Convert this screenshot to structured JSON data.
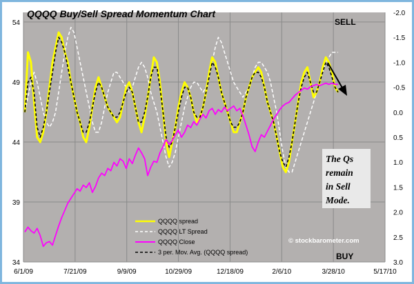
{
  "chart_data": {
    "type": "line",
    "title": "QQQQ Buy/Sell Spread Momentum Chart",
    "sell_label": "SELL",
    "buy_label": "BUY",
    "watermark": "© stockbarometer.com",
    "note": [
      "The Qs",
      "remain",
      "in Sell",
      "Mode."
    ],
    "x_labels": [
      "6/1/09",
      "7/21/09",
      "9/9/09",
      "10/29/09",
      "12/18/09",
      "2/6/10",
      "3/28/10",
      "5/17/10"
    ],
    "left_axis": {
      "ticks": [
        34,
        39,
        44,
        49,
        54
      ],
      "range": [
        34,
        54.8
      ]
    },
    "right_axis": {
      "ticks": [
        -2.0,
        -1.5,
        -1.0,
        -0.5,
        0.0,
        0.5,
        1.0,
        1.5,
        2.0,
        2.5,
        3.0
      ],
      "range": [
        -2.0,
        3.0
      ]
    },
    "grid": true,
    "legend_position": "bottom-center",
    "colors": {
      "plot_bg": "#b3b0af",
      "spread": "#ffff00",
      "lt_spread": "#ffffff",
      "close": "#ff00ff",
      "moving_avg": "#000000",
      "frame": "#7fb6de"
    },
    "series": [
      {
        "name": "QQQQ spread",
        "axis": "right",
        "values": [
          0.0,
          -1.2,
          -1.0,
          -0.2,
          0.5,
          0.6,
          0.4,
          0.0,
          -0.5,
          -1.0,
          -1.3,
          -1.6,
          -1.5,
          -1.2,
          -1.0,
          -0.6,
          -0.3,
          0.0,
          0.2,
          0.5,
          0.6,
          0.3,
          -0.1,
          -0.5,
          -0.7,
          -0.5,
          -0.3,
          -0.1,
          0.0,
          0.1,
          0.2,
          0.1,
          -0.2,
          -0.5,
          -0.6,
          -0.4,
          -0.1,
          0.2,
          0.4,
          0.1,
          -0.3,
          -0.7,
          -1.1,
          -1.0,
          -0.6,
          0.0,
          0.6,
          0.9,
          0.6,
          0.3,
          -0.1,
          -0.4,
          -0.6,
          -0.5,
          -0.3,
          0.0,
          0.2,
          0.1,
          -0.1,
          -0.4,
          -0.8,
          -1.1,
          -1.0,
          -0.7,
          -0.4,
          -0.2,
          0.0,
          0.2,
          0.4,
          0.4,
          0.2,
          0.0,
          -0.3,
          -0.5,
          -0.7,
          -0.8,
          -0.9,
          -0.8,
          -0.5,
          -0.2,
          0.0,
          0.2,
          0.5,
          0.8,
          1.1,
          1.2,
          1.0,
          0.6,
          0.2,
          -0.2,
          -0.6,
          -0.8,
          -0.9,
          -0.6,
          -0.3,
          -0.4,
          -0.6,
          -0.9,
          -1.1,
          -1.0,
          -0.8,
          -0.5,
          -0.4
        ]
      },
      {
        "name": "QQQQ LT Spread",
        "axis": "right",
        "values": [
          0.0,
          -0.3,
          -0.6,
          -0.8,
          -0.6,
          -0.3,
          0.0,
          0.2,
          0.3,
          0.2,
          0.0,
          -0.4,
          -0.8,
          -1.2,
          -1.5,
          -1.7,
          -1.6,
          -1.3,
          -1.0,
          -0.7,
          -0.4,
          -0.1,
          0.2,
          0.4,
          0.4,
          0.2,
          -0.1,
          -0.4,
          -0.6,
          -0.8,
          -0.8,
          -0.7,
          -0.6,
          -0.5,
          -0.4,
          -0.5,
          -0.7,
          -0.9,
          -1.0,
          -0.9,
          -0.7,
          -0.4,
          -0.2,
          0.0,
          0.3,
          0.6,
          0.9,
          1.1,
          1.0,
          0.8,
          0.5,
          0.2,
          -0.1,
          -0.3,
          -0.5,
          -0.6,
          -0.6,
          -0.5,
          -0.4,
          -0.5,
          -0.7,
          -1.0,
          -1.3,
          -1.5,
          -1.4,
          -1.2,
          -1.0,
          -0.8,
          -0.6,
          -0.5,
          -0.4,
          -0.3,
          -0.4,
          -0.5,
          -0.7,
          -0.9,
          -1.0,
          -1.0,
          -0.9,
          -0.8,
          -0.6,
          -0.3,
          0.0,
          0.4,
          0.8,
          1.1,
          1.2,
          1.2,
          1.0,
          0.8,
          0.6,
          0.4,
          0.2,
          0.0,
          -0.2,
          -0.4,
          -0.6,
          -0.8,
          -1.0,
          -1.1,
          -1.2,
          -1.2,
          -1.2
        ]
      },
      {
        "name": "QQQQ Close",
        "axis": "left",
        "values": [
          36.5,
          36.9,
          36.6,
          36.4,
          36.8,
          36.2,
          35.3,
          35.6,
          35.7,
          35.4,
          36.2,
          37.0,
          37.7,
          38.3,
          38.9,
          39.3,
          39.7,
          40.1,
          39.9,
          40.4,
          40.2,
          40.6,
          39.8,
          40.3,
          41.0,
          41.4,
          41.2,
          41.8,
          41.6,
          42.3,
          42.0,
          42.6,
          42.4,
          41.8,
          42.6,
          42.2,
          42.9,
          43.5,
          43.1,
          42.6,
          41.2,
          41.9,
          42.4,
          42.3,
          43.1,
          43.6,
          44.2,
          43.8,
          44.1,
          44.6,
          45.0,
          44.4,
          44.8,
          45.4,
          45.2,
          45.7,
          45.4,
          45.9,
          46.3,
          46.0,
          46.6,
          46.8,
          46.3,
          46.7,
          46.5,
          46.9,
          46.6,
          46.8,
          47.0,
          46.6,
          46.8,
          46.2,
          45.4,
          44.6,
          43.6,
          43.2,
          44.0,
          44.6,
          44.4,
          44.9,
          45.4,
          45.9,
          46.3,
          46.7,
          47.0,
          47.2,
          47.3,
          47.6,
          47.9,
          48.1,
          48.3,
          48.5,
          48.4,
          48.6,
          48.7,
          48.8,
          48.7,
          48.8,
          48.9,
          48.8,
          48.9,
          48.8,
          48.8
        ]
      },
      {
        "name": "3 per. Mov. Avg. (QQQQ spread)",
        "axis": "right",
        "values": [
          0.0,
          -0.6,
          -0.7,
          -0.4,
          0.3,
          0.5,
          0.3,
          0.0,
          -0.4,
          -0.8,
          -1.2,
          -1.5,
          -1.4,
          -1.2,
          -0.9,
          -0.6,
          -0.3,
          0.0,
          0.2,
          0.4,
          0.4,
          0.2,
          -0.1,
          -0.4,
          -0.6,
          -0.5,
          -0.3,
          -0.1,
          0.0,
          0.1,
          0.1,
          0.0,
          -0.2,
          -0.4,
          -0.5,
          -0.4,
          -0.1,
          0.2,
          0.2,
          0.0,
          -0.3,
          -0.7,
          -0.9,
          -0.9,
          -0.5,
          0.0,
          0.5,
          0.7,
          0.6,
          0.3,
          0.0,
          -0.3,
          -0.5,
          -0.5,
          -0.3,
          0.0,
          0.1,
          0.1,
          -0.1,
          -0.4,
          -0.7,
          -1.0,
          -0.9,
          -0.7,
          -0.4,
          -0.2,
          0.0,
          0.2,
          0.3,
          0.3,
          0.2,
          0.0,
          -0.3,
          -0.5,
          -0.7,
          -0.8,
          -0.8,
          -0.7,
          -0.5,
          -0.2,
          0.0,
          0.2,
          0.5,
          0.8,
          1.0,
          1.1,
          0.9,
          0.6,
          0.2,
          -0.2,
          -0.5,
          -0.7,
          -0.8,
          -0.6,
          -0.4,
          -0.4,
          -0.6,
          -0.8,
          -1.0,
          -0.9,
          -0.7,
          -0.5,
          -0.4
        ]
      }
    ]
  }
}
